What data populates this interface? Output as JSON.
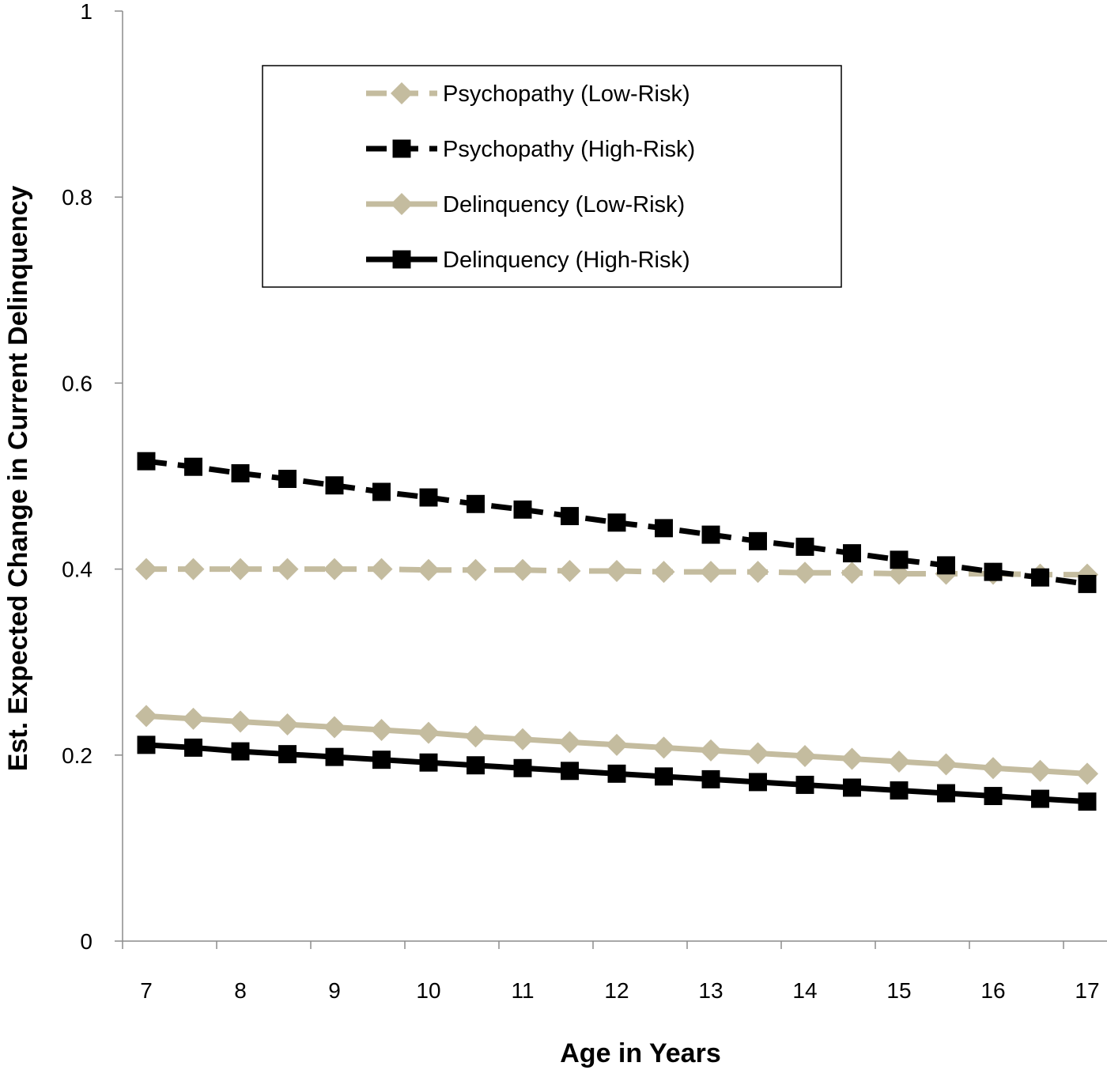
{
  "chart_data": {
    "type": "line",
    "title": "",
    "xlabel": "Age in Years",
    "ylabel": "Est. Expected  Change in Current Delinquency",
    "xlim": [
      6.75,
      17.2
    ],
    "ylim": [
      0,
      1
    ],
    "x_ticks": [
      7,
      8,
      9,
      10,
      11,
      12,
      13,
      14,
      15,
      16,
      17
    ],
    "x_tick_labels": [
      "7",
      "8",
      "9",
      "10",
      "11",
      "12",
      "13",
      "14",
      "15",
      "16",
      "17"
    ],
    "y_ticks": [
      0,
      0.2,
      0.4,
      0.6,
      0.8,
      1
    ],
    "y_tick_labels": [
      "0",
      "0.2",
      "0.4",
      "0.6",
      "0.8",
      "1"
    ],
    "x": [
      7,
      7.5,
      8,
      8.5,
      9,
      9.5,
      10,
      10.5,
      11,
      11.5,
      12,
      12.5,
      13,
      13.5,
      14,
      14.5,
      15,
      15.5,
      16,
      16.5,
      17
    ],
    "legend_position": "top-center",
    "grid": false,
    "series": [
      {
        "name": "Psychopathy (Low-Risk)",
        "color": "#c4bc9f",
        "line_style": "dashed",
        "marker": "diamond",
        "values": [
          0.4,
          0.4,
          0.4,
          0.4,
          0.4,
          0.4,
          0.399,
          0.399,
          0.399,
          0.398,
          0.398,
          0.397,
          0.397,
          0.397,
          0.396,
          0.396,
          0.395,
          0.395,
          0.395,
          0.394,
          0.394
        ]
      },
      {
        "name": "Psychopathy (High-Risk)",
        "color": "#000000",
        "line_style": "dashed",
        "marker": "square",
        "values": [
          0.516,
          0.51,
          0.503,
          0.497,
          0.49,
          0.483,
          0.477,
          0.47,
          0.464,
          0.457,
          0.45,
          0.444,
          0.437,
          0.43,
          0.424,
          0.417,
          0.41,
          0.404,
          0.397,
          0.391,
          0.384
        ]
      },
      {
        "name": "Delinquency (Low-Risk)",
        "color": "#c4bc9f",
        "line_style": "solid",
        "marker": "diamond",
        "values": [
          0.242,
          0.239,
          0.236,
          0.233,
          0.23,
          0.227,
          0.224,
          0.22,
          0.217,
          0.214,
          0.211,
          0.208,
          0.205,
          0.202,
          0.199,
          0.196,
          0.193,
          0.19,
          0.186,
          0.183,
          0.18
        ]
      },
      {
        "name": "Delinquency (High-Risk)",
        "color": "#000000",
        "line_style": "solid",
        "marker": "square",
        "values": [
          0.211,
          0.208,
          0.204,
          0.201,
          0.198,
          0.195,
          0.192,
          0.189,
          0.186,
          0.183,
          0.18,
          0.177,
          0.174,
          0.171,
          0.168,
          0.165,
          0.162,
          0.159,
          0.156,
          0.153,
          0.15
        ]
      }
    ]
  }
}
